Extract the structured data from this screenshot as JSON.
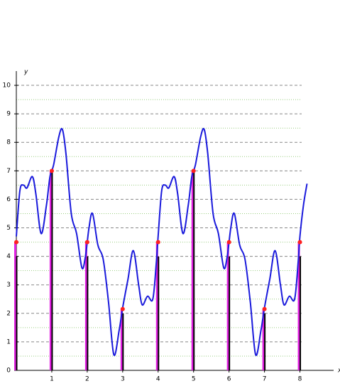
{
  "chart_data": {
    "type": "stem",
    "x_label": "x",
    "y_label": "y",
    "xlim": [
      0,
      8.95
    ],
    "ylim": [
      0,
      10.5
    ],
    "xticks": [
      1,
      2,
      3,
      4,
      5,
      6,
      7,
      8
    ],
    "yticks": [
      0,
      1,
      2,
      3,
      4,
      5,
      6,
      7,
      8,
      9,
      10
    ],
    "minor_grid": [
      0.5,
      1.5,
      2.5,
      3.5,
      4.5,
      5.5,
      6.5,
      7.5,
      8.5,
      9.5
    ],
    "grid_color": "#888888",
    "minor_grid_color": "#9acd80",
    "stem_x": [
      0,
      1,
      2,
      3,
      4,
      5,
      6,
      7,
      8
    ],
    "stem_values": [
      4,
      7,
      4,
      2,
      4,
      7,
      4,
      2,
      4
    ],
    "stem_color": "#000000",
    "sample_values": [
      4.5,
      7,
      4.5,
      2.15,
      4.5,
      7,
      4.5,
      2.15,
      4.5
    ],
    "sample_color": "#e020e0",
    "dot_color": "#ff2020",
    "curve_color": "#1a1adc",
    "curve_x": [
      0,
      0.1,
      0.2,
      0.3,
      0.45,
      0.55,
      0.7,
      0.85,
      0.95,
      1.05,
      1.2,
      1.3,
      1.4,
      1.55,
      1.7,
      1.85,
      1.95,
      2.05,
      2.15,
      2.3,
      2.45,
      2.6,
      2.75,
      2.9,
      3.0,
      3.15,
      3.3,
      3.45,
      3.55,
      3.7,
      3.85,
      3.95,
      4,
      4.1,
      4.2,
      4.3,
      4.45,
      4.55,
      4.7,
      4.85,
      4.95,
      5.05,
      5.2,
      5.3,
      5.4,
      5.55,
      5.7,
      5.85,
      5.95,
      6.05,
      6.15,
      6.3,
      6.45,
      6.6,
      6.75,
      6.9,
      7.0,
      7.15,
      7.3,
      7.45,
      7.55,
      7.7,
      7.85,
      7.95,
      8.0,
      8.1,
      8.2
    ],
    "curve_y": [
      4.7,
      6.3,
      6.5,
      6.4,
      6.8,
      6.2,
      4.8,
      5.8,
      6.8,
      7.2,
      8.2,
      8.45,
      7.6,
      5.5,
      4.8,
      3.6,
      4.0,
      5.0,
      5.5,
      4.4,
      3.9,
      2.4,
      0.55,
      1.4,
      2.2,
      3.2,
      4.2,
      3.0,
      2.3,
      2.6,
      2.5,
      3.8,
      4.7,
      6.3,
      6.5,
      6.4,
      6.8,
      6.2,
      4.8,
      5.8,
      6.8,
      7.2,
      8.2,
      8.45,
      7.6,
      5.5,
      4.8,
      3.6,
      4.0,
      5.0,
      5.5,
      4.4,
      3.9,
      2.4,
      0.55,
      1.4,
      2.2,
      3.2,
      4.2,
      3.0,
      2.3,
      2.6,
      2.5,
      3.8,
      4.7,
      5.8,
      6.55
    ]
  }
}
